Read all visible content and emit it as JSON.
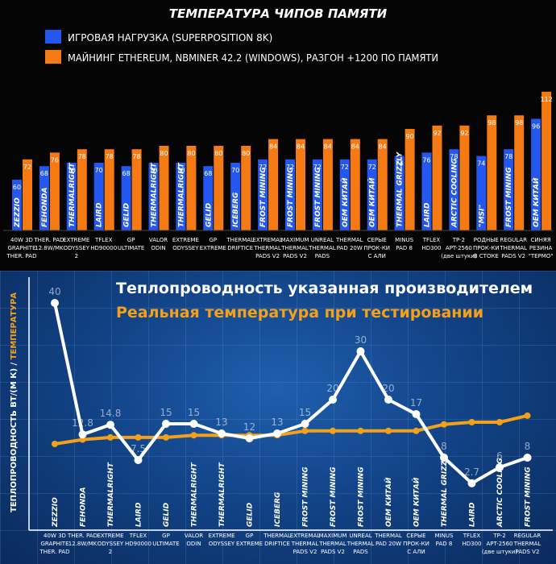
{
  "chart_data": [
    {
      "type": "bar",
      "title": "ТЕМПЕРАТУРА ЧИПОВ ПАМЯТИ",
      "categories": [
        [
          "40W 3D",
          "GRAPHITE",
          "THER. PAD"
        ],
        [
          "THER. PAD",
          "12.8W/MK"
        ],
        [
          "EXTREME",
          "ODYSSEY",
          "2"
        ],
        [
          "TFLEX",
          "HD90000"
        ],
        [
          "GP",
          "ULTIMATE"
        ],
        [
          "VALOR",
          "ODIN"
        ],
        [
          "EXTREME",
          "ODYSSEY"
        ],
        [
          "GP",
          "EXTREME"
        ],
        [
          "THERMAL",
          "DRIFTICE"
        ],
        [
          "EXTREMAL",
          "THERMAL",
          "PADS V2"
        ],
        [
          "MAXIMUM",
          "THERMAL",
          "PADS V2"
        ],
        [
          "UNREAL",
          "THERMAL",
          "PADS"
        ],
        [
          "THERMAL",
          "PAD 20W"
        ],
        [
          "СЕРЫЕ",
          "ПРОК-КИ",
          "С АЛИ"
        ],
        [
          "MINUS",
          "PAD 8"
        ],
        [
          "TFLEX",
          "HD300"
        ],
        [
          "TP-2",
          "APT-2560",
          "(две штуки)"
        ],
        [
          "РОДНЫЕ",
          "ПРОК-КИ",
          "В СТОКЕ"
        ],
        [
          "REGULAR",
          "THERMAL",
          "PADS V2"
        ],
        [
          "СИНЯЯ",
          "РЕЗИНА",
          "\"ТЕРМО\""
        ]
      ],
      "brands": [
        "ZEZZIO",
        "FEHONDA",
        "THERMALRIGHT",
        "LAIRD",
        "GELID",
        "THERMALRIGHT",
        "THERMALRIGHT",
        "GELID",
        "ICEBERG",
        "FROST MINING",
        "FROST MINING",
        "FROST MINING",
        "OEM КИТАЙ",
        "OEM КИТАЙ",
        "THERMAL GRIZZLY",
        "LAIRD",
        "ARCTIC COOLING",
        "\"MSI\"",
        "FROST MINING",
        "OEM КИТАЙ"
      ],
      "series": [
        {
          "name": "ИГРОВАЯ НАГРУЗКА (SUPERPOSITION 8K)",
          "color": "#2457f0",
          "values": [
            60,
            68,
            70,
            70,
            68,
            70,
            70,
            68,
            70,
            72,
            72,
            72,
            72,
            72,
            74,
            76,
            78,
            74,
            78,
            96
          ]
        },
        {
          "name": "МАЙНИНГ ETHEREUM, NBMINER 42.2 (WINDOWS), РАЗГОН +1200 ПО ПАМЯТИ",
          "color": "#f57a14",
          "values": [
            72,
            76,
            78,
            78,
            78,
            80,
            80,
            80,
            80,
            84,
            84,
            84,
            84,
            84,
            90,
            92,
            92,
            98,
            98,
            112
          ]
        }
      ],
      "value_labels": [
        [
          "60",
          "68",
          "70",
          "70",
          "68",
          "70",
          "70",
          "68",
          "70",
          "72",
          "72",
          "72",
          "72",
          "72",
          "74",
          "76",
          "78",
          "74",
          "78",
          "96"
        ],
        [
          "72",
          "76",
          "78",
          "78",
          "78",
          "80",
          "80",
          "80",
          "80",
          "84",
          "84",
          "84",
          "84",
          "84",
          "90",
          "92",
          "92",
          "98",
          "98",
          "112"
        ]
      ],
      "ylim": [
        0,
        112
      ]
    },
    {
      "type": "line",
      "title": "Теплопроводность указанная производителем",
      "subtitle": "Реальная температура при тестировании",
      "ylabel_main": "ТЕПЛОПРОВОДНОСТЬ ВТ/(М К)",
      "ylabel_sep": " / ",
      "ylabel_alt": "ТЕМПЕРАТУРА",
      "categories": [
        [
          "40W 3D",
          "GRAPHITE",
          "THER. PAD"
        ],
        [
          "THER. PAD",
          "12.8W/MK"
        ],
        [
          "EXTREME",
          "ODYSSEY",
          "2"
        ],
        [
          "TFLEX",
          "HD90000"
        ],
        [
          "GP",
          "ULTIMATE"
        ],
        [
          "VALOR",
          "ODIN"
        ],
        [
          "EXTREME",
          "ODYSSEY"
        ],
        [
          "GP",
          "EXTREME"
        ],
        [
          "THERMAL",
          "DRIFTICE"
        ],
        [
          "EXTREMAL",
          "THERMAL",
          "PADS V2"
        ],
        [
          "MAXIMUM",
          "THERMAL",
          "PADS V2"
        ],
        [
          "UNREAL",
          "THERMAL",
          "PADS"
        ],
        [
          "THERMAL",
          "PAD 20W"
        ],
        [
          "СЕРЫЕ",
          "ПРОК-КИ",
          "С АЛИ"
        ],
        [
          "MINUS",
          "PAD 8"
        ],
        [
          "TFLEX",
          "HD300"
        ],
        [
          "TP-2",
          "APT-2560",
          "(две штуки)"
        ],
        [
          "REGULAR",
          "THERMAL",
          "PADS V2"
        ]
      ],
      "brands": [
        "ZEZZIO",
        "FEHONDA",
        "THERMALRIGHT",
        "LAIRD",
        "GELID",
        "THERMALRIGHT",
        "THERMALRIGHT",
        "GELID",
        "ICEBERG",
        "FROST MINING",
        "FROST MINING",
        "FROST MINING",
        "OEM КИТАЙ",
        "OEM КИТАЙ",
        "THERMAL GRIZZLY",
        "LAIRD",
        "ARCTIC COOLING",
        "FROST MINING"
      ],
      "series": [
        {
          "name": "Теплопроводность указанная производителем",
          "color": "#ffffff",
          "values": [
            40,
            12.8,
            14.8,
            7.5,
            15,
            15,
            13,
            12,
            13,
            15,
            20,
            30,
            20,
            17,
            8,
            2.7,
            6,
            8
          ],
          "labels": [
            "40",
            "12.8",
            "14.8",
            "7.5",
            "15",
            "15",
            "13",
            "12",
            "13",
            "15",
            "20",
            "30",
            "20",
            "17",
            "8",
            "2.7",
            "6",
            "8"
          ]
        },
        {
          "name": "Реальная температура при тестировании",
          "color": "#f5a01a",
          "values": [
            72,
            76,
            78,
            78,
            78,
            80,
            80,
            80,
            80,
            84,
            84,
            84,
            84,
            84,
            90,
            92,
            92,
            98
          ]
        }
      ],
      "ylim_conductivity": [
        0,
        42
      ],
      "ylim_temperature": [
        20,
        130
      ]
    }
  ]
}
